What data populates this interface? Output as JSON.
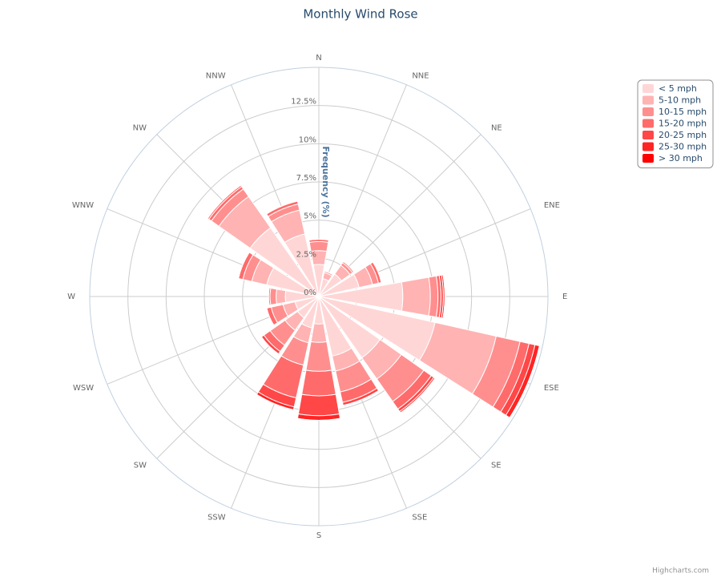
{
  "chart_data": {
    "type": "windrose",
    "title": "Monthly Wind Rose",
    "y_axis_label": "Frequency (%)",
    "credits": "Highcharts.com",
    "legend_position": "top-right",
    "categories": [
      "N",
      "NNE",
      "NE",
      "ENE",
      "E",
      "ESE",
      "SE",
      "SSE",
      "S",
      "SSW",
      "SW",
      "WSW",
      "W",
      "WNW",
      "NW",
      "NNW"
    ],
    "ylim": [
      0,
      15
    ],
    "yticks": [
      {
        "value": 0,
        "label": "0%"
      },
      {
        "value": 2.5,
        "label": "2.5%"
      },
      {
        "value": 5,
        "label": "5%"
      },
      {
        "value": 7.5,
        "label": "7.5%"
      },
      {
        "value": 10,
        "label": "10%"
      },
      {
        "value": 12.5,
        "label": "12.5%"
      }
    ],
    "series": [
      {
        "name": "< 5 mph",
        "color": "#ffd6d6",
        "values": [
          2.1,
          1.2,
          1.8,
          2.7,
          5.5,
          7.8,
          4.9,
          4.0,
          1.8,
          2.1,
          1.7,
          1.6,
          2.2,
          3.5,
          5.5,
          4.2
        ]
      },
      {
        "name": "5-10 mph",
        "color": "#ffb3b3",
        "values": [
          0.9,
          0.4,
          0.7,
          0.9,
          1.8,
          4.1,
          1.7,
          1.0,
          1.2,
          1.0,
          1.0,
          0.8,
          0.6,
          1.0,
          2.5,
          1.6
        ]
      },
      {
        "name": "10-15 mph",
        "color": "#ff8f8f",
        "values": [
          0.6,
          0.1,
          0.2,
          0.4,
          0.5,
          1.6,
          1.8,
          1.4,
          1.9,
          1.5,
          1.2,
          0.8,
          0.4,
          0.6,
          0.6,
          0.4
        ]
      },
      {
        "name": "15-20 mph",
        "color": "#ff6b6b",
        "values": [
          0.15,
          0,
          0.1,
          0.2,
          0.2,
          0.6,
          0.6,
          0.7,
          1.6,
          2.2,
          0.5,
          0.3,
          0.1,
          0.3,
          0.2,
          0.2
        ]
      },
      {
        "name": "20-25 mph",
        "color": "#ff4747",
        "values": [
          0,
          0,
          0,
          0,
          0.15,
          0.4,
          0.2,
          0.2,
          1.3,
          0.6,
          0.2,
          0,
          0,
          0,
          0.1,
          0
        ]
      },
      {
        "name": "25-30 mph",
        "color": "#ff2424",
        "values": [
          0,
          0,
          0,
          0,
          0.1,
          0.3,
          0.1,
          0,
          0.3,
          0.2,
          0,
          0,
          0,
          0,
          0,
          0
        ]
      },
      {
        "name": "> 30 mph",
        "color": "#ff0000",
        "values": [
          0,
          0,
          0,
          0,
          0.05,
          0,
          0,
          0,
          0,
          0,
          0,
          0,
          0,
          0,
          0,
          0
        ]
      }
    ]
  }
}
